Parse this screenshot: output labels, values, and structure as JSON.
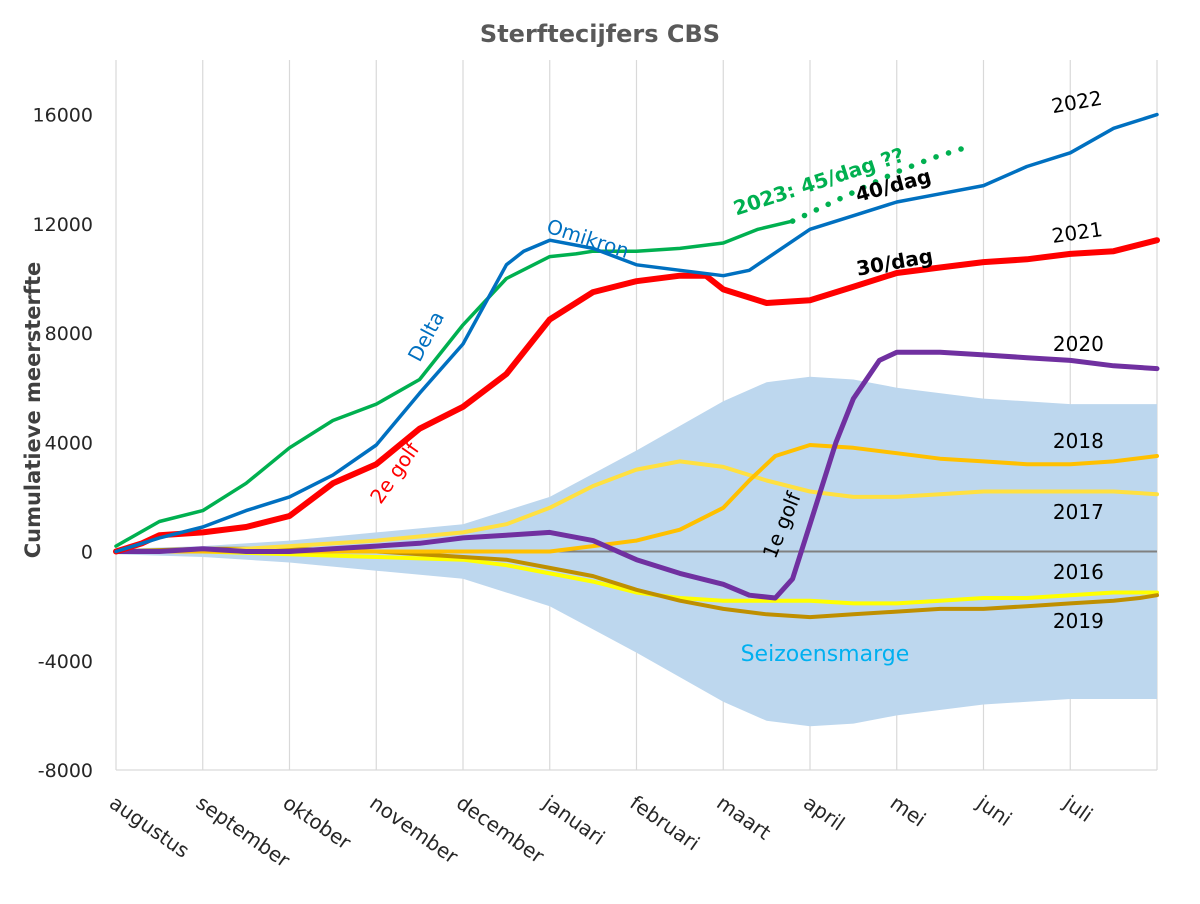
{
  "chart_data": {
    "type": "line",
    "title": "Sterftecijfers CBS",
    "ylabel": "Cumulatieve meersterfte",
    "ylim": [
      -8000,
      18000
    ],
    "yticks": [
      -8000,
      -4000,
      0,
      4000,
      8000,
      12000,
      16000
    ],
    "grid": "vertical",
    "x_range": [
      0,
      12
    ],
    "months": [
      "augustus",
      "september",
      "oktober",
      "november",
      "december",
      "januari",
      "februari",
      "maart",
      "april",
      "mei",
      "juni",
      "juli"
    ],
    "band": {
      "name": "Seizoensmarge",
      "color": "#bdd7ee",
      "x": [
        0,
        1,
        2,
        3,
        4,
        5,
        6,
        7,
        7.5,
        8,
        8.5,
        9,
        10,
        11,
        12
      ],
      "upper": [
        100,
        200,
        400,
        700,
        1000,
        2000,
        3700,
        5500,
        6200,
        6400,
        6300,
        6000,
        5600,
        5400,
        5400
      ],
      "lower": [
        -100,
        -200,
        -400,
        -700,
        -1000,
        -2000,
        -3700,
        -5500,
        -6200,
        -6400,
        -6300,
        -6000,
        -5600,
        -5400,
        -5400
      ]
    },
    "series": [
      {
        "name": "2022",
        "color": "#0070c0",
        "width": 3.5,
        "x": [
          0,
          0.5,
          1,
          1.5,
          2,
          2.5,
          3,
          3.5,
          4,
          4.5,
          4.7,
          5,
          5.5,
          6,
          6.5,
          7,
          7.3,
          8,
          8.5,
          9,
          9.5,
          10,
          10.5,
          11,
          11.5,
          12
        ],
        "y": [
          0,
          500,
          900,
          1500,
          2000,
          2800,
          3900,
          5800,
          7600,
          10500,
          11000,
          11400,
          11100,
          10500,
          10300,
          10100,
          10300,
          11800,
          12300,
          12800,
          13100,
          13400,
          14100,
          14600,
          15500,
          16000
        ]
      },
      {
        "name": "2023: 45/dag ??",
        "color": "#00b050",
        "width": 3.5,
        "x": [
          0,
          0.5,
          1,
          1.5,
          2,
          2.5,
          3,
          3.5,
          4,
          4.5,
          5,
          5.3,
          5.5,
          6,
          6.5,
          7,
          7.4,
          7.8
        ],
        "y": [
          200,
          1100,
          1500,
          2500,
          3800,
          4800,
          5400,
          6300,
          8300,
          10000,
          10800,
          10900,
          11000,
          11000,
          11100,
          11300,
          11800,
          12100
        ]
      },
      {
        "name": "2023: 45/dag ??",
        "color": "#00b050",
        "width": 5,
        "dotted": true,
        "x": [
          7.8,
          8.2,
          8.6,
          9,
          9.4,
          9.8
        ],
        "y": [
          12100,
          12700,
          13300,
          13900,
          14400,
          14800
        ]
      },
      {
        "name": "2021",
        "color": "#ff0000",
        "width": 6,
        "x": [
          0,
          0.3,
          0.5,
          1,
          1.5,
          2,
          2.5,
          3,
          3.5,
          4,
          4.5,
          4.8,
          5,
          5.5,
          6,
          6.5,
          6.8,
          7,
          7.5,
          8,
          8.5,
          9,
          9.5,
          10,
          10.5,
          11,
          11.5,
          12
        ],
        "y": [
          0,
          300,
          600,
          700,
          900,
          1300,
          2500,
          3200,
          4500,
          5300,
          6500,
          7700,
          8500,
          9500,
          9900,
          10100,
          10100,
          9600,
          9100,
          9200,
          9700,
          10200,
          10400,
          10600,
          10700,
          10900,
          11000,
          11400
        ]
      },
      {
        "name": "2020",
        "color": "#7030a0",
        "width": 5,
        "x": [
          0,
          0.5,
          1,
          1.5,
          2,
          2.5,
          3,
          3.5,
          4,
          4.5,
          5,
          5.5,
          6,
          6.5,
          7,
          7.3,
          7.6,
          7.8,
          8,
          8.3,
          8.5,
          8.8,
          9,
          9.5,
          10,
          10.5,
          11,
          11.5,
          12
        ],
        "y": [
          0,
          0,
          100,
          0,
          0,
          100,
          200,
          300,
          500,
          600,
          700,
          400,
          -300,
          -800,
          -1200,
          -1600,
          -1700,
          -1000,
          1000,
          4000,
          5600,
          7000,
          7300,
          7300,
          7200,
          7100,
          7000,
          6800,
          6700
        ]
      },
      {
        "name": "2018",
        "color": "#ffc000",
        "width": 4,
        "x": [
          0,
          1,
          2,
          3,
          4,
          5,
          5.5,
          6,
          6.5,
          7,
          7.3,
          7.6,
          8,
          8.5,
          9,
          9.5,
          10,
          10.5,
          11,
          11.5,
          12
        ],
        "y": [
          0,
          0,
          0,
          0,
          0,
          0,
          200,
          400,
          800,
          1600,
          2600,
          3500,
          3900,
          3800,
          3600,
          3400,
          3300,
          3200,
          3200,
          3300,
          3500
        ]
      },
      {
        "name": "2017",
        "color": "#ffe040",
        "width": 4,
        "x": [
          0,
          1,
          2,
          3,
          4,
          4.5,
          5,
          5.5,
          6,
          6.5,
          7,
          7.5,
          8,
          8.5,
          9,
          9.5,
          10,
          10.5,
          11,
          11.5,
          12
        ],
        "y": [
          0,
          0,
          200,
          400,
          700,
          1000,
          1600,
          2400,
          3000,
          3300,
          3100,
          2600,
          2200,
          2000,
          2000,
          2100,
          2200,
          2200,
          2200,
          2200,
          2100
        ]
      },
      {
        "name": "2016",
        "color": "#ffff00",
        "width": 4,
        "x": [
          0,
          1,
          2,
          3,
          4,
          4.5,
          5,
          5.5,
          6,
          6.5,
          7,
          7.5,
          8,
          8.5,
          9,
          9.5,
          10,
          10.5,
          11,
          11.5,
          12
        ],
        "y": [
          0,
          0,
          -100,
          -200,
          -300,
          -500,
          -800,
          -1100,
          -1500,
          -1700,
          -1800,
          -1800,
          -1800,
          -1900,
          -1900,
          -1800,
          -1700,
          -1700,
          -1600,
          -1500,
          -1500
        ]
      },
      {
        "name": "2019",
        "color": "#bf8f00",
        "width": 4,
        "x": [
          0,
          1,
          2,
          3,
          4,
          4.5,
          5,
          5.5,
          6,
          6.5,
          7,
          7.5,
          8,
          8.5,
          9,
          9.5,
          10,
          10.5,
          11,
          11.5,
          11.8,
          12
        ],
        "y": [
          0,
          100,
          100,
          0,
          -200,
          -300,
          -600,
          -900,
          -1400,
          -1800,
          -2100,
          -2300,
          -2400,
          -2300,
          -2200,
          -2100,
          -2100,
          -2000,
          -1900,
          -1800,
          -1700,
          -1600
        ]
      }
    ],
    "annotations": [
      {
        "text": "2022",
        "color": "#000000",
        "bold": false,
        "x": 10.8,
        "y": 16050,
        "rotate": -10
      },
      {
        "text": "Omikron",
        "color": "#0070c0",
        "bold": false,
        "x": 4.95,
        "y": 11700,
        "rotate": 18
      },
      {
        "text": "Delta",
        "color": "#0070c0",
        "bold": false,
        "x": 3.5,
        "y": 6900,
        "rotate": -62
      },
      {
        "text": "2023: 45/dag ??",
        "color": "#00b050",
        "bold": true,
        "x": 7.15,
        "y": 12300,
        "rotate": -18
      },
      {
        "text": "40/dag",
        "color": "#000000",
        "bold": true,
        "x": 8.55,
        "y": 12800,
        "rotate": -15
      },
      {
        "text": "30/dag",
        "color": "#000000",
        "bold": true,
        "x": 8.55,
        "y": 10100,
        "rotate": -10
      },
      {
        "text": "2021",
        "color": "#000000",
        "bold": false,
        "x": 10.8,
        "y": 11300,
        "rotate": -8
      },
      {
        "text": "2e golf",
        "color": "#ff0000",
        "bold": false,
        "x": 3.05,
        "y": 1700,
        "rotate": -55
      },
      {
        "text": "2020",
        "color": "#000000",
        "bold": false,
        "x": 10.8,
        "y": 7350,
        "rotate": 0
      },
      {
        "text": "2018",
        "color": "#000000",
        "bold": false,
        "x": 10.8,
        "y": 3800,
        "rotate": 0
      },
      {
        "text": "2017",
        "color": "#000000",
        "bold": false,
        "x": 10.8,
        "y": 1200,
        "rotate": 0
      },
      {
        "text": "1e golf",
        "color": "#000000",
        "bold": false,
        "x": 7.6,
        "y": -300,
        "rotate": -68
      },
      {
        "text": "2016",
        "color": "#000000",
        "bold": false,
        "x": 10.8,
        "y": -1000,
        "rotate": 0
      },
      {
        "text": "2019",
        "color": "#000000",
        "bold": false,
        "x": 10.8,
        "y": -2800,
        "rotate": 0
      },
      {
        "text": "Seizoensmarge",
        "color": "#00b0f0",
        "bold": false,
        "x": 7.2,
        "y": -4000,
        "rotate": 0
      }
    ],
    "zero_line_color": "#808080",
    "axis_color": "#d9d9d9"
  }
}
